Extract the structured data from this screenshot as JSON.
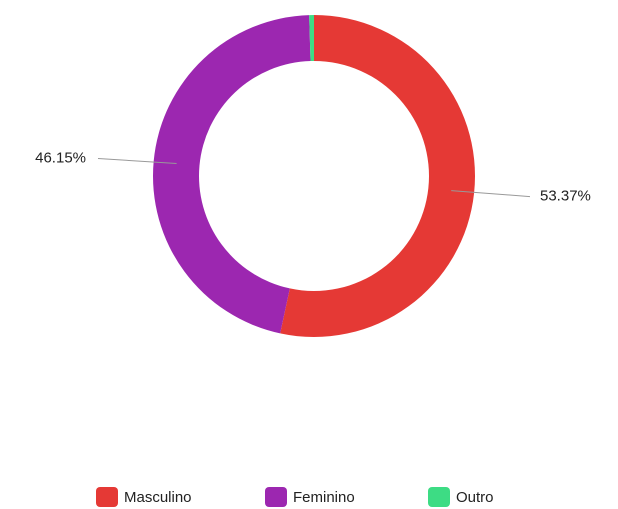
{
  "chart_data": {
    "type": "pie",
    "categories": [
      "Masculino",
      "Feminino",
      "Outro"
    ],
    "values": [
      53.37,
      46.15,
      0.48
    ],
    "value_labels": [
      "53.37%",
      "46.15%",
      null
    ],
    "colors": [
      "#e53935",
      "#9c27b0",
      "#3ddc84"
    ],
    "donut": true,
    "legend": "bottom"
  }
}
